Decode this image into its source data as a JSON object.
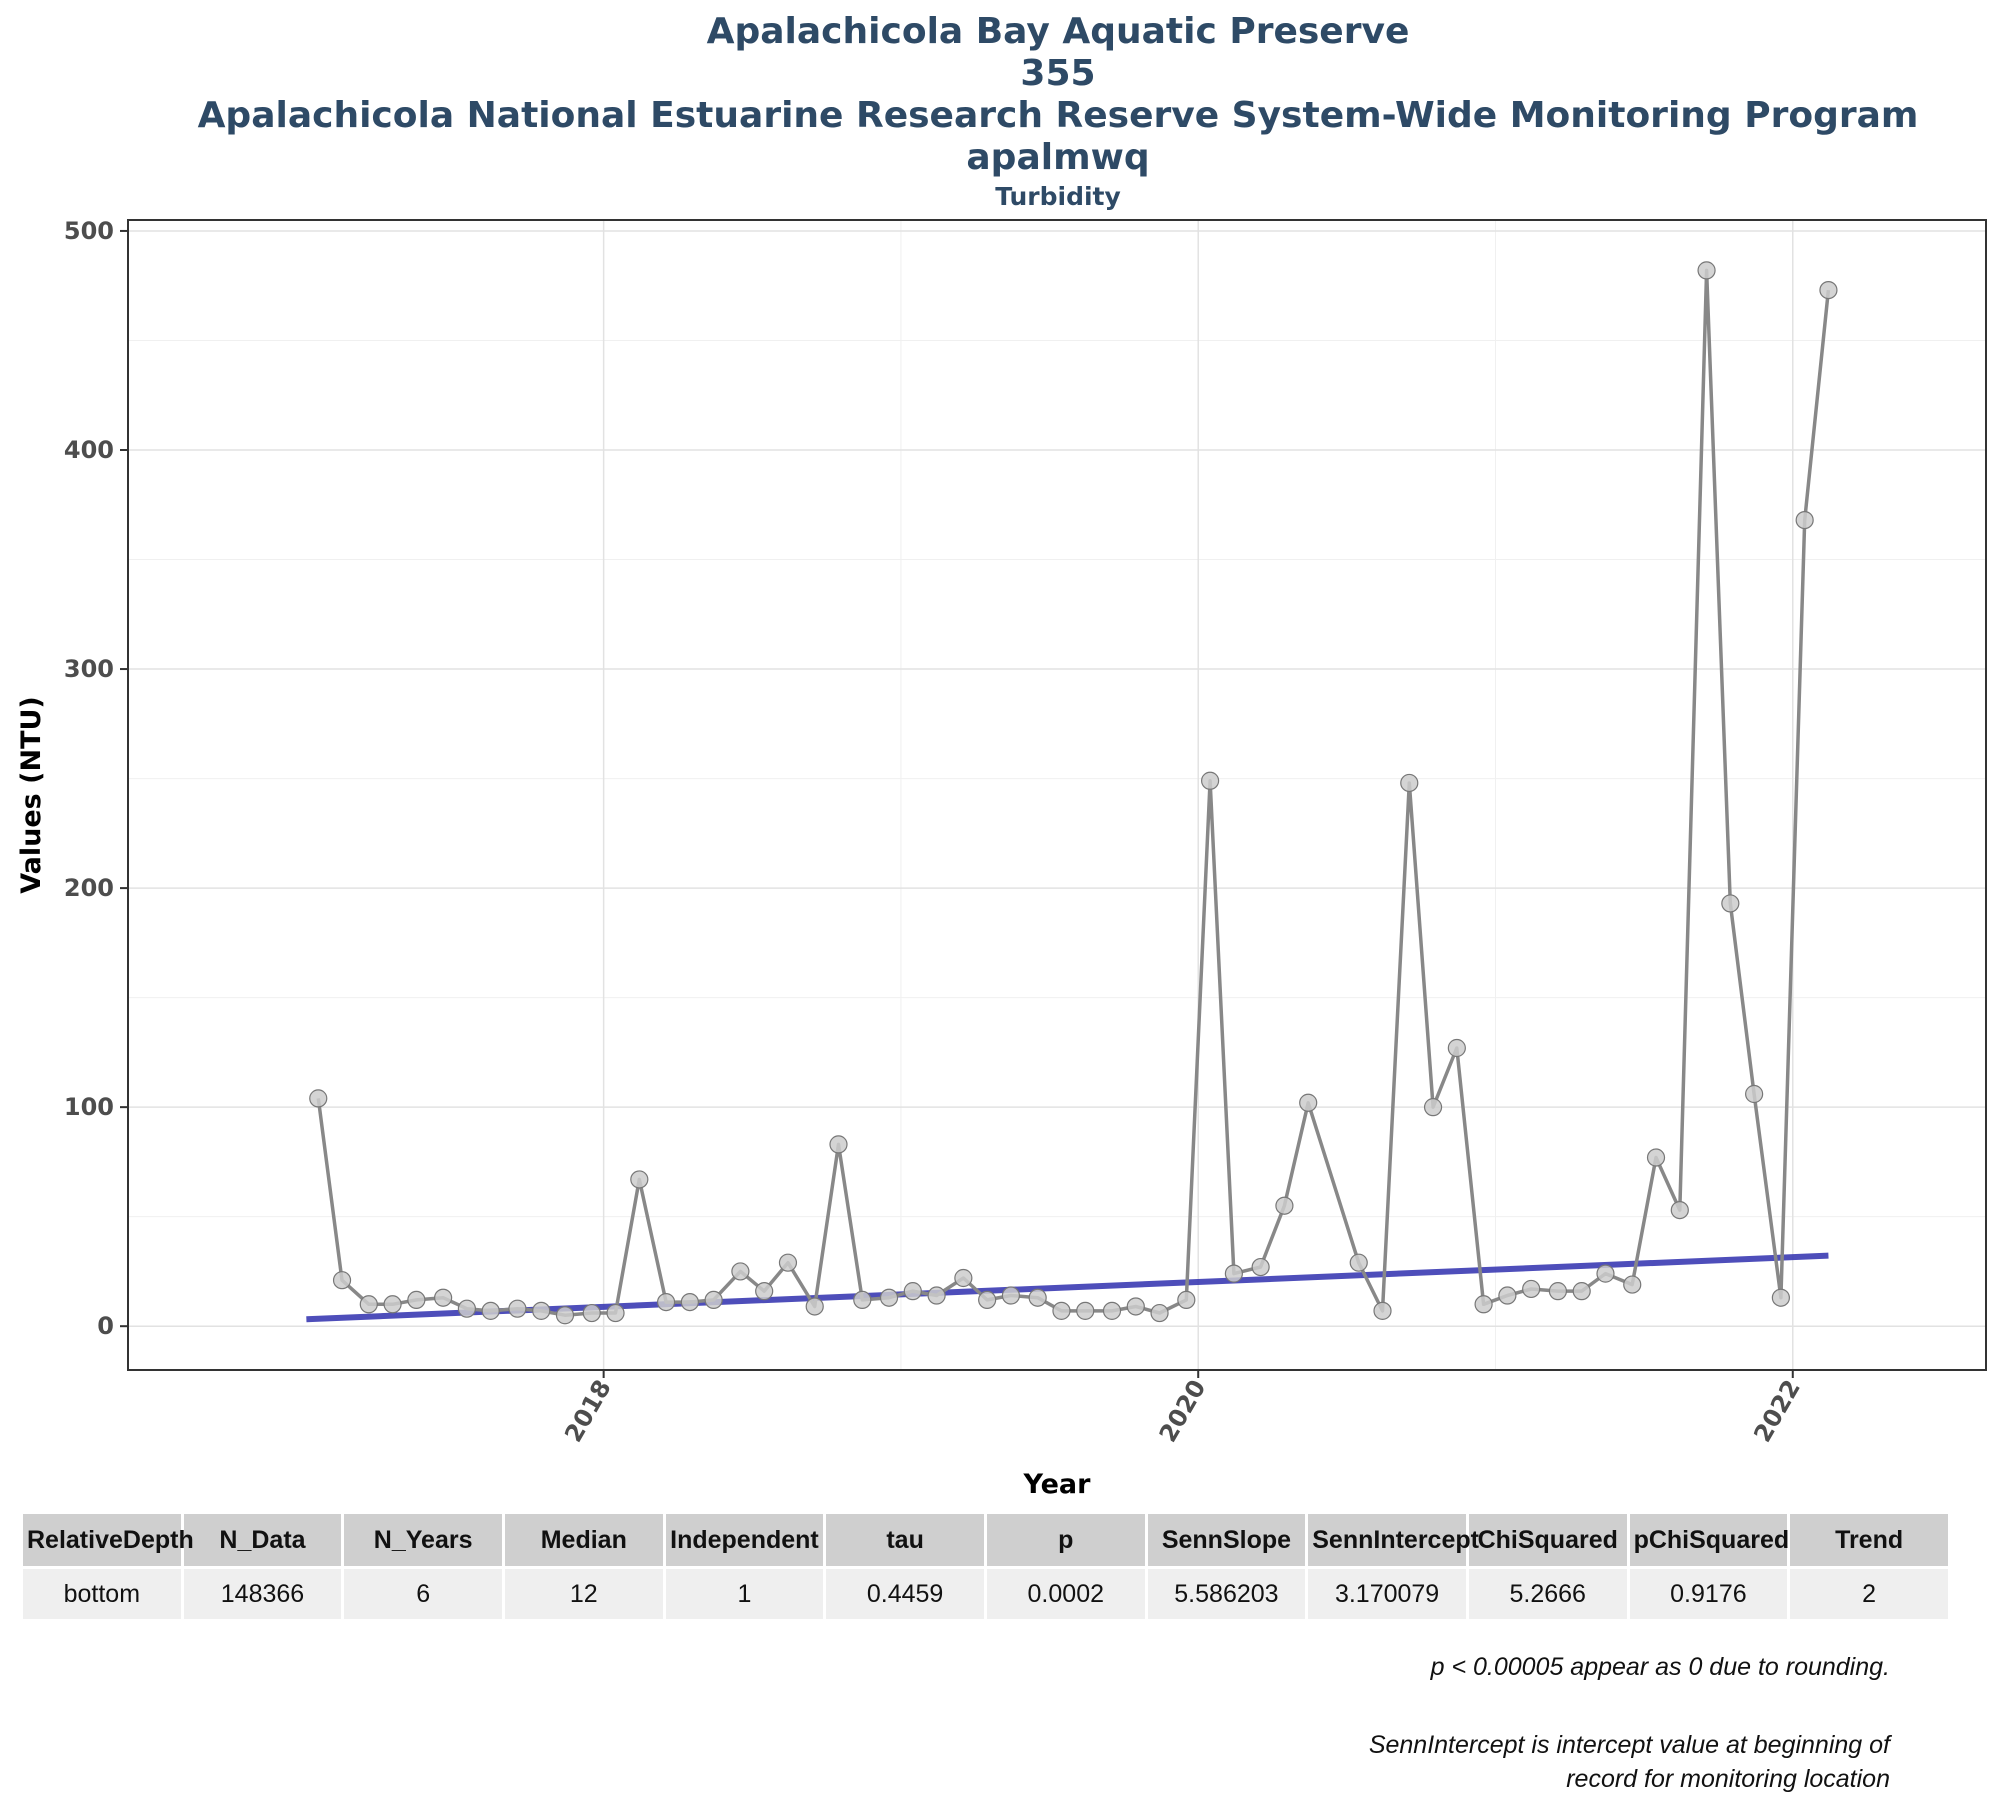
{
  "chart_data": {
    "type": "line",
    "title_lines": [
      "Apalachicola Bay Aquatic Preserve",
      "355",
      "Apalachicola National Estuarine Research Reserve System-Wide Monitoring Program",
      "apalmwq"
    ],
    "subtitle": "Turbidity",
    "xlabel": "Year",
    "ylabel": "Values (NTU)",
    "xlim": [
      2016.4,
      2022.65
    ],
    "ylim": [
      -20,
      505
    ],
    "x_ticks": [
      2018,
      2020,
      2022
    ],
    "y_ticks": [
      0,
      100,
      200,
      300,
      400,
      500
    ],
    "grid": true,
    "series": [
      {
        "line_color": "#888888",
        "point_color": "#cccccc",
        "points": [
          {
            "x": 2017.04,
            "y": 104
          },
          {
            "x": 2017.12,
            "y": 21
          },
          {
            "x": 2017.21,
            "y": 10
          },
          {
            "x": 2017.29,
            "y": 10
          },
          {
            "x": 2017.37,
            "y": 12
          },
          {
            "x": 2017.46,
            "y": 13
          },
          {
            "x": 2017.54,
            "y": 8
          },
          {
            "x": 2017.62,
            "y": 7
          },
          {
            "x": 2017.71,
            "y": 8
          },
          {
            "x": 2017.79,
            "y": 7
          },
          {
            "x": 2017.87,
            "y": 5
          },
          {
            "x": 2017.96,
            "y": 6
          },
          {
            "x": 2018.04,
            "y": 6
          },
          {
            "x": 2018.12,
            "y": 67
          },
          {
            "x": 2018.21,
            "y": 11
          },
          {
            "x": 2018.29,
            "y": 11
          },
          {
            "x": 2018.37,
            "y": 12
          },
          {
            "x": 2018.46,
            "y": 25
          },
          {
            "x": 2018.54,
            "y": 16
          },
          {
            "x": 2018.62,
            "y": 29
          },
          {
            "x": 2018.71,
            "y": 9
          },
          {
            "x": 2018.79,
            "y": 83
          },
          {
            "x": 2018.87,
            "y": 12
          },
          {
            "x": 2018.96,
            "y": 13
          },
          {
            "x": 2019.04,
            "y": 16
          },
          {
            "x": 2019.12,
            "y": 14
          },
          {
            "x": 2019.21,
            "y": 22
          },
          {
            "x": 2019.29,
            "y": 12
          },
          {
            "x": 2019.37,
            "y": 14
          },
          {
            "x": 2019.46,
            "y": 13
          },
          {
            "x": 2019.54,
            "y": 7
          },
          {
            "x": 2019.62,
            "y": 7
          },
          {
            "x": 2019.71,
            "y": 7
          },
          {
            "x": 2019.79,
            "y": 9
          },
          {
            "x": 2019.87,
            "y": 6
          },
          {
            "x": 2019.96,
            "y": 12
          },
          {
            "x": 2020.04,
            "y": 249
          },
          {
            "x": 2020.12,
            "y": 24
          },
          {
            "x": 2020.21,
            "y": 27
          },
          {
            "x": 2020.29,
            "y": 55
          },
          {
            "x": 2020.37,
            "y": 102
          },
          {
            "x": 2020.54,
            "y": 29
          },
          {
            "x": 2020.62,
            "y": 7
          },
          {
            "x": 2020.71,
            "y": 248
          },
          {
            "x": 2020.79,
            "y": 100
          },
          {
            "x": 2020.87,
            "y": 127
          },
          {
            "x": 2020.96,
            "y": 10
          },
          {
            "x": 2021.04,
            "y": 14
          },
          {
            "x": 2021.12,
            "y": 17
          },
          {
            "x": 2021.21,
            "y": 16
          },
          {
            "x": 2021.29,
            "y": 16
          },
          {
            "x": 2021.37,
            "y": 24
          },
          {
            "x": 2021.46,
            "y": 19
          },
          {
            "x": 2021.54,
            "y": 77
          },
          {
            "x": 2021.62,
            "y": 53
          },
          {
            "x": 2021.71,
            "y": 482
          },
          {
            "x": 2021.79,
            "y": 193
          },
          {
            "x": 2021.87,
            "y": 106
          },
          {
            "x": 2021.96,
            "y": 13
          },
          {
            "x": 2022.04,
            "y": 368
          },
          {
            "x": 2022.12,
            "y": 473
          }
        ]
      }
    ],
    "trend_line": {
      "color": "#3b3bb3",
      "points": [
        {
          "x": 2017.0,
          "y": 3.17
        },
        {
          "x": 2022.12,
          "y": 32.2
        }
      ]
    }
  },
  "stats_table": {
    "headers": [
      "RelativeDepth",
      "N_Data",
      "N_Years",
      "Median",
      "Independent",
      "tau",
      "p",
      "SennSlope",
      "SennIntercept",
      "ChiSquared",
      "pChiSquared",
      "Trend"
    ],
    "rows": [
      [
        "bottom",
        "148366",
        "6",
        "12",
        "1",
        "0.4459",
        "0.0002",
        "5.586203",
        "3.170079",
        "5.2666",
        "0.9176",
        "2"
      ]
    ]
  },
  "footnotes": {
    "rounding": "p < 0.00005 appear as 0 due to rounding.",
    "intercept_line1": "SennIntercept is intercept value at beginning of",
    "intercept_line2": "record for monitoring location"
  }
}
